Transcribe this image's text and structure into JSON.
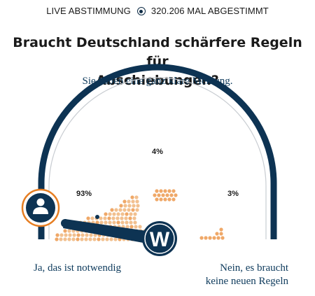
{
  "live_bar": {
    "live_label": "LIVE ABSTIMMUNG",
    "votes_label": "320.206 MAL ABGESTIMMT"
  },
  "question": {
    "line1": "Braucht Deutschland schärfere Regeln für",
    "line2": "Abschiebungen?"
  },
  "subtitle": "Sie haben eine ganz klare Meinung.",
  "gauge": {
    "left_percent_label": "93%",
    "middle_percent_label": "4%",
    "right_percent_label": "3%",
    "distribution": [
      0.93,
      0.04,
      0.03
    ],
    "needle_position": 0.08,
    "colors": {
      "arc": "#0d3353",
      "dots": "#f2c08f",
      "dots_accent": "#efa868",
      "avatar_ring": "#e67e22"
    },
    "icons": {
      "user_avatar": "user-avatar-icon",
      "brand_badge": "brand-w-logo"
    }
  },
  "answers": {
    "left": "Ja, das ist notwendig",
    "right_line1": "Nein, es braucht",
    "right_line2": "keine neuen Regeln"
  },
  "brand_letter": "W"
}
